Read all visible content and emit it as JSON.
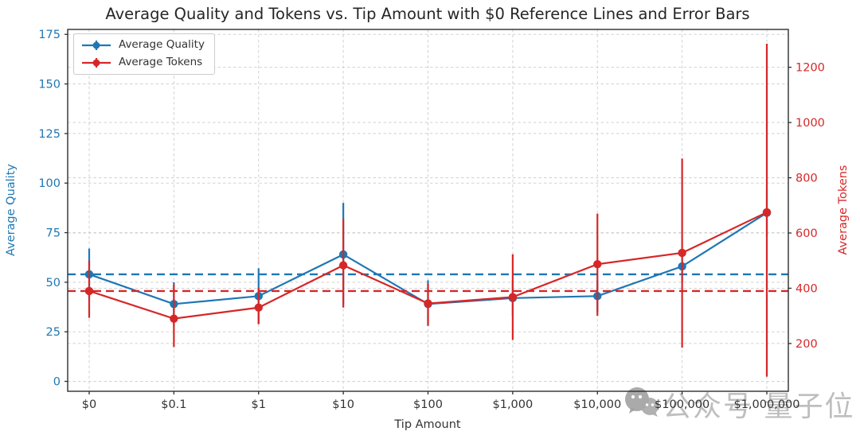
{
  "chart_data": {
    "type": "line",
    "title": "Average Quality and Tokens vs. Tip Amount with $0 Reference Lines and Error Bars",
    "xlabel": "Tip Amount",
    "categories": [
      "$0",
      "$0.1",
      "$1",
      "$10",
      "$100",
      "$1,000",
      "$10,000",
      "$100,000",
      "$1,000,000"
    ],
    "series": [
      {
        "name": "Average Quality",
        "axis": "left",
        "color": "#1f77b4",
        "values": [
          54,
          39,
          43,
          64,
          39,
          42,
          43,
          58,
          85
        ],
        "err_low": [
          41,
          28,
          29,
          39,
          28,
          33,
          35,
          50,
          73
        ],
        "err_high": [
          67,
          50,
          57,
          90,
          51,
          51,
          51,
          66,
          97
        ]
      },
      {
        "name": "Average Tokens",
        "axis": "right",
        "color": "#d62728",
        "values": [
          390,
          290,
          330,
          483,
          345,
          368,
          487,
          528,
          675
        ],
        "err_low": [
          293,
          187,
          270,
          330,
          265,
          213,
          300,
          185,
          80
        ],
        "err_high": [
          500,
          414,
          402,
          650,
          415,
          523,
          670,
          870,
          1285
        ]
      }
    ],
    "reference_lines": [
      {
        "axis": "left",
        "value": 54,
        "color": "#1f77b4",
        "style": "dashed"
      },
      {
        "axis": "right",
        "value": 390,
        "color": "#d62728",
        "style": "dashed"
      }
    ],
    "axes": {
      "left": {
        "label": "Average Quality",
        "color": "#1f77b4",
        "ticks": [
          0,
          25,
          50,
          75,
          100,
          125,
          150,
          175
        ],
        "range": [
          -5,
          177.5
        ]
      },
      "right": {
        "label": "Average Tokens",
        "color": "#d62728",
        "ticks": [
          200,
          400,
          600,
          800,
          1000,
          1200
        ],
        "range": [
          27,
          1337
        ]
      }
    },
    "legend": {
      "position": "upper-left",
      "entries": [
        "Average Quality",
        "Average Tokens"
      ]
    },
    "grid": true
  },
  "watermark": {
    "icon": "wechat-icon",
    "text": "公众号 量子位"
  }
}
